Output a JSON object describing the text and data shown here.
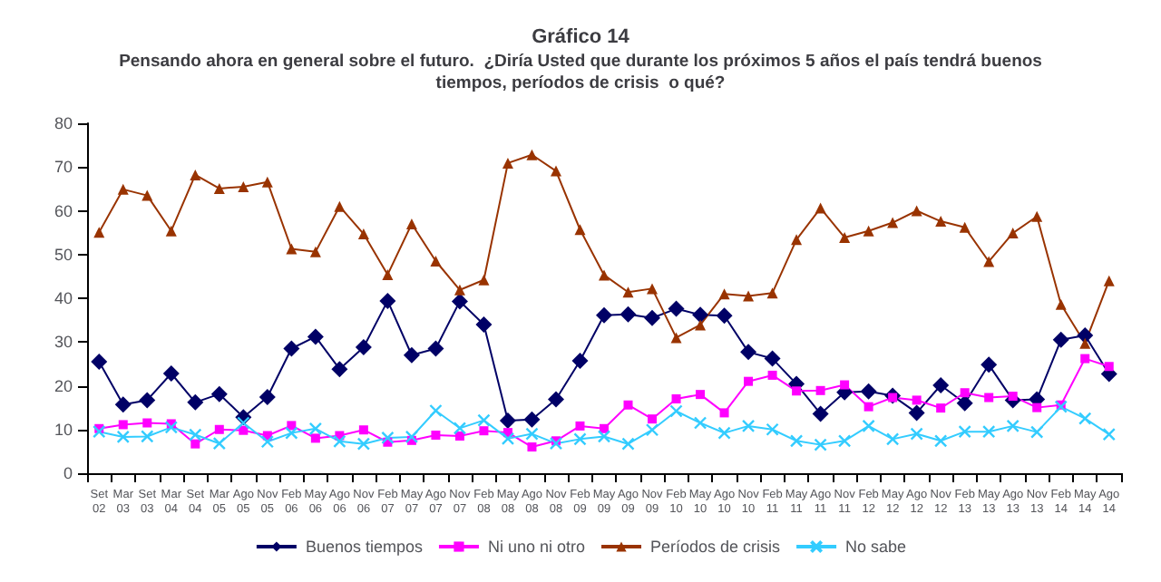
{
  "chart_data": {
    "type": "line",
    "title": "Gráfico 14",
    "subtitle": "Pensando ahora en general sobre el futuro.  ¿Diría Usted que durante los próximos 5 años el país tendrá buenos\ntiempos, períodos de crisis  o qué?",
    "categories": [
      "Set 02",
      "Mar 03",
      "Set 03",
      "Mar 04",
      "Set 04",
      "Mar 05",
      "Ago 05",
      "Nov 05",
      "Feb 06",
      "May 06",
      "Ago 06",
      "Nov 06",
      "Feb 07",
      "May 07",
      "Ago 07",
      "Nov 07",
      "Feb 08",
      "May 08",
      "Ago 08",
      "Nov 08",
      "Feb 09",
      "May 09",
      "Ago 09",
      "Nov 09",
      "Feb 10",
      "May 10",
      "Ago 10",
      "Nov 10",
      "Feb 11",
      "May 11",
      "Ago 11",
      "Nov 11",
      "Feb 12",
      "May 12",
      "Ago 12",
      "Nov 12",
      "Feb 13",
      "May 13",
      "Ago 13",
      "Nov 13",
      "Feb 14",
      "May 14",
      "Ago 14"
    ],
    "series": [
      {
        "name": "Buenos tiempos",
        "color": "#000066",
        "marker": "diamond",
        "values": [
          25.5,
          15.7,
          16.7,
          22.8,
          16.2,
          18.1,
          12.8,
          17.4,
          28.5,
          31.2,
          23.8,
          28.8,
          39.4,
          27.0,
          28.5,
          39.3,
          34.0,
          12.0,
          12.3,
          16.9,
          25.7,
          36.1,
          36.3,
          35.5,
          37.6,
          36.2,
          36.0,
          27.7,
          26.2,
          20.4,
          13.6,
          18.5,
          18.7,
          17.7,
          13.8,
          20.1,
          16.0,
          24.8,
          16.7,
          16.9,
          30.5,
          31.5,
          22.7
        ]
      },
      {
        "name": "Ni uno ni otro",
        "color": "#ff00ff",
        "marker": "square",
        "values": [
          10.2,
          11.1,
          11.5,
          11.3,
          6.7,
          10.0,
          9.8,
          8.6,
          10.9,
          8.0,
          8.6,
          9.9,
          7.1,
          7.5,
          8.7,
          8.5,
          9.7,
          9.3,
          6.0,
          7.4,
          10.8,
          10.2,
          15.6,
          12.4,
          17.0,
          18.0,
          13.8,
          21.0,
          22.4,
          18.8,
          18.9,
          20.2,
          15.2,
          17.3,
          16.7,
          14.9,
          18.4,
          17.3,
          17.6,
          15.0,
          15.6,
          26.2,
          24.4
        ]
      },
      {
        "name": "Períodos de crisis",
        "color": "#993300",
        "marker": "triangle",
        "values": [
          55.1,
          64.9,
          63.5,
          55.4,
          68.2,
          65.1,
          65.5,
          66.6,
          51.3,
          50.6,
          61.0,
          54.7,
          45.4,
          57.0,
          48.5,
          41.9,
          44.2,
          70.9,
          72.8,
          69.1,
          55.7,
          45.3,
          41.4,
          42.2,
          31.0,
          33.9,
          41.0,
          40.5,
          41.2,
          53.4,
          60.6,
          53.9,
          55.4,
          57.3,
          60.0,
          57.6,
          56.2,
          48.4,
          54.9,
          58.7,
          38.6,
          29.7,
          44.0
        ]
      },
      {
        "name": "No sabe",
        "color": "#33ccff",
        "marker": "cross",
        "values": [
          9.5,
          8.3,
          8.4,
          10.5,
          8.8,
          6.8,
          11.5,
          7.2,
          9.2,
          10.2,
          7.3,
          6.7,
          8.1,
          8.3,
          14.3,
          10.3,
          12.1,
          7.9,
          9.0,
          6.8,
          7.8,
          8.4,
          6.7,
          9.9,
          14.2,
          11.5,
          9.2,
          10.8,
          10.0,
          7.4,
          6.5,
          7.4,
          10.8,
          7.8,
          9.0,
          7.4,
          9.5,
          9.5,
          10.8,
          9.4,
          15.2,
          12.5,
          8.9
        ]
      }
    ],
    "ylim": [
      0,
      80
    ],
    "yticks": [
      0,
      10,
      20,
      30,
      40,
      50,
      60,
      70,
      80
    ],
    "legend": "bottom"
  }
}
